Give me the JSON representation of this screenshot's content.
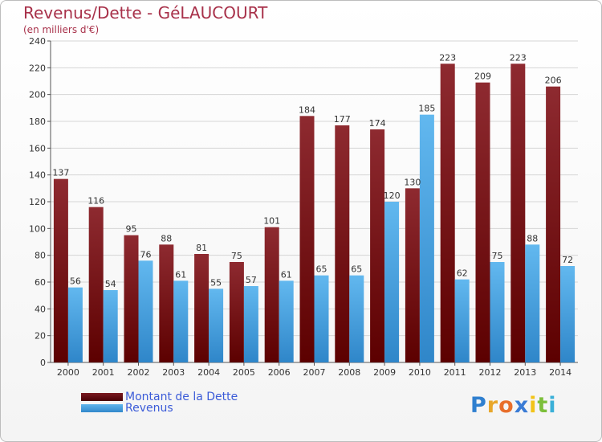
{
  "title": "Revenus/Dette - GéLAUCOURT",
  "subtitle": "(en milliers d'€)",
  "chart_data": {
    "type": "bar",
    "categories": [
      "2000",
      "2001",
      "2002",
      "2003",
      "2004",
      "2005",
      "2006",
      "2007",
      "2008",
      "2009",
      "2010",
      "2011",
      "2012",
      "2013",
      "2014"
    ],
    "series": [
      {
        "name": "Montant de la Dette",
        "color": "#8b1a22",
        "values": [
          137,
          116,
          95,
          88,
          81,
          75,
          101,
          184,
          177,
          174,
          130,
          223,
          209,
          223,
          206
        ]
      },
      {
        "name": "Revenus",
        "color": "#4aa3df",
        "values": [
          56,
          54,
          76,
          61,
          55,
          57,
          61,
          65,
          65,
          120,
          185,
          62,
          75,
          88,
          72
        ]
      }
    ],
    "ylim": [
      0,
      240
    ],
    "yticks": [
      0,
      20,
      40,
      60,
      80,
      100,
      120,
      140,
      160,
      180,
      200,
      220,
      240
    ],
    "grid": true,
    "legend_position": "bottom-left"
  },
  "legend": {
    "items": [
      {
        "label": "Montant de la Dette",
        "color": "#6b0f14"
      },
      {
        "label": "Revenus",
        "color": "#3d9ad8"
      }
    ]
  },
  "logo": {
    "letters": [
      "P",
      "r",
      "o",
      "x",
      "i",
      "t",
      "i"
    ],
    "colors": [
      "#2f7fcf",
      "#e8a72b",
      "#e86e2b",
      "#3a7bd5",
      "#f2c318",
      "#7cbf3a",
      "#3bb0d8"
    ]
  }
}
